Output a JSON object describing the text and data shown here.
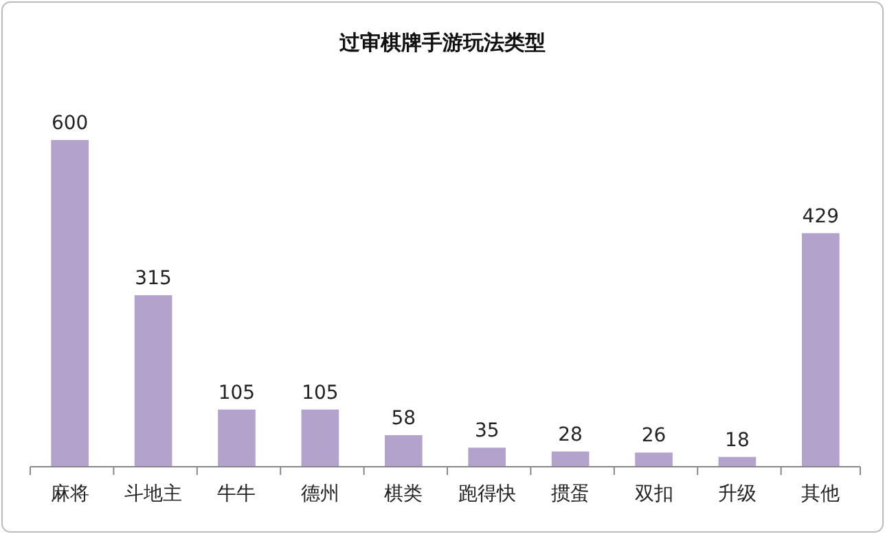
{
  "chart_data": {
    "type": "bar",
    "title": "过审棋牌手游玩法类型",
    "categories": [
      "麻将",
      "斗地主",
      "牛牛",
      "德州",
      "棋类",
      "跑得快",
      "掼蛋",
      "双扣",
      "升级",
      "其他"
    ],
    "values": [
      600,
      315,
      105,
      105,
      58,
      35,
      28,
      26,
      18,
      429
    ],
    "color": "#b3a2cc",
    "data_labels": true
  }
}
